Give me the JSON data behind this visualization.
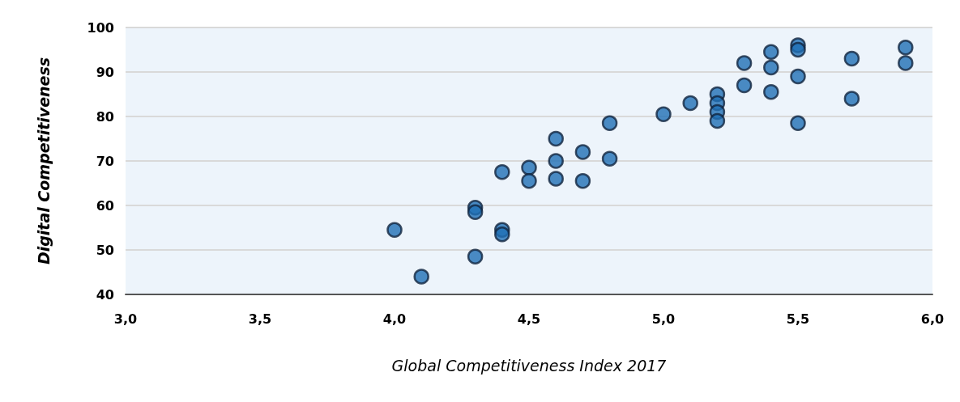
{
  "chart_data": {
    "type": "scatter",
    "xlabel": "Global Competitiveness Index 2017",
    "ylabel": "Digital Competitiveness",
    "series": [
      {
        "color": "#1f6fb5",
        "x": [
          4.0,
          4.1,
          4.3,
          4.3,
          4.3,
          4.4,
          4.4,
          4.4,
          4.5,
          4.5,
          4.6,
          4.6,
          4.6,
          4.7,
          4.7,
          4.8,
          4.8,
          5.0,
          5.1,
          5.2,
          5.2,
          5.2,
          5.2,
          5.3,
          5.3,
          5.4,
          5.4,
          5.4,
          5.5,
          5.5,
          5.5,
          5.5,
          5.7,
          5.7,
          5.9,
          5.9
        ],
        "values": [
          54.5,
          44,
          48.5,
          59.5,
          58.5,
          54.5,
          53.5,
          67.5,
          68.5,
          65.5,
          75,
          70,
          66,
          72,
          65.5,
          78.5,
          70.5,
          80.5,
          83,
          85,
          83,
          81,
          79,
          92,
          87,
          94.5,
          91,
          85.5,
          96,
          95,
          89,
          78.5,
          93,
          84,
          95.5,
          92
        ]
      }
    ],
    "xlim": [
      3,
      6
    ],
    "xticks": [
      {
        "value": 3,
        "label": "3,0"
      },
      {
        "value": 3.5,
        "label": "3,5"
      },
      {
        "value": 4,
        "label": "4,0"
      },
      {
        "value": 4.5,
        "label": "4,5"
      },
      {
        "value": 5,
        "label": "5,0"
      },
      {
        "value": 5.5,
        "label": "5,5"
      },
      {
        "value": 6,
        "label": "6,0"
      }
    ],
    "ylim": [
      40,
      100
    ],
    "yticks": [
      40,
      50,
      60,
      70,
      80,
      90,
      100
    ],
    "grid": "y",
    "marker": "circle"
  }
}
